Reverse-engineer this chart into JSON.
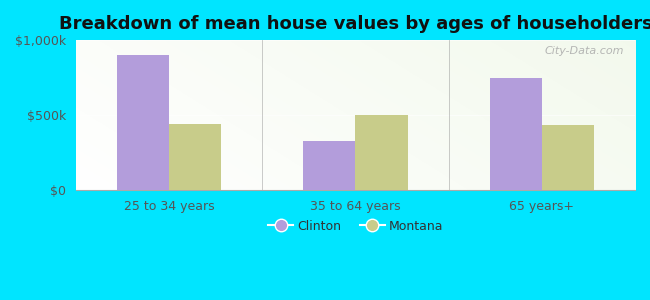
{
  "title": "Breakdown of mean house values by ages of householders",
  "categories": [
    "25 to 34 years",
    "35 to 64 years",
    "65 years+"
  ],
  "clinton_values": [
    900000,
    325000,
    750000
  ],
  "montana_values": [
    440000,
    500000,
    435000
  ],
  "ylim": [
    0,
    1000000
  ],
  "yticks": [
    0,
    500000,
    1000000
  ],
  "ytick_labels": [
    "$0",
    "$500k",
    "$1,000k"
  ],
  "clinton_color": "#b39ddb",
  "montana_color": "#c8cc8a",
  "background_color": "#00e5ff",
  "legend_labels": [
    "Clinton",
    "Montana"
  ],
  "watermark": "City-Data.com",
  "bar_width": 0.28,
  "title_fontsize": 13,
  "tick_fontsize": 9,
  "legend_fontsize": 9
}
